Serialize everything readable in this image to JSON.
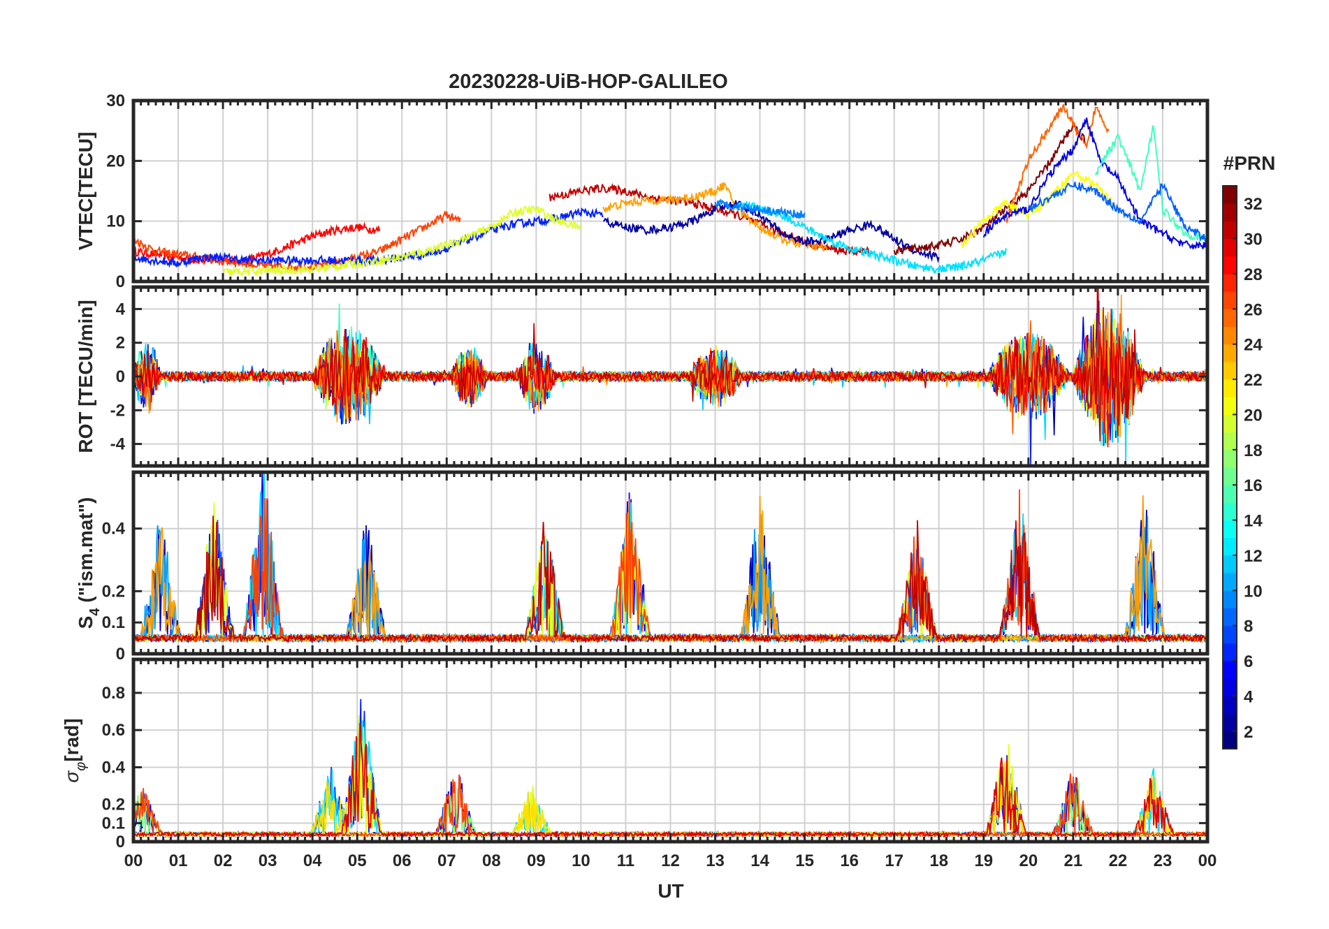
{
  "chart_data": [
    {
      "type": "line",
      "title": "20230228-UiB-HOP-GALILEO",
      "ylabel": "VTEC[TECU]",
      "ylim": [
        0,
        30
      ],
      "yticks": [
        0,
        10,
        20,
        30
      ],
      "xlim": [
        0,
        24
      ],
      "series": [
        {
          "prn": 29,
          "x": [
            0,
            0.5,
            1,
            1.5,
            2,
            2.5,
            3,
            3.5,
            4,
            4.5,
            5,
            5.5
          ],
          "values": [
            5,
            4.5,
            4,
            3.5,
            3.5,
            3.5,
            4.5,
            6,
            7.5,
            8.5,
            9,
            8.5
          ]
        },
        {
          "prn": 27,
          "x": [
            0,
            0.5,
            1,
            1.5,
            2,
            2.5,
            3,
            3.5,
            4,
            4.5,
            5,
            5.5,
            6,
            6.5,
            7,
            7.3
          ],
          "values": [
            7,
            5,
            4.5,
            4,
            3.5,
            3,
            2.5,
            2.5,
            2.5,
            3,
            4,
            5,
            7,
            9,
            11,
            10
          ]
        },
        {
          "prn": 6,
          "x": [
            0,
            0.5,
            1,
            1.5,
            2,
            2.5,
            3,
            3.5,
            4,
            4.5,
            5,
            5.5,
            6,
            6.5,
            7,
            7.5,
            8,
            8.5,
            9,
            9.5,
            10,
            10.5
          ],
          "values": [
            4,
            3.5,
            3,
            4,
            4,
            3.5,
            3.5,
            3.5,
            3.5,
            3.5,
            3.5,
            3.5,
            4,
            4.5,
            5.5,
            7,
            8.5,
            9.5,
            10,
            10.5,
            11.5,
            11
          ]
        },
        {
          "prn": 20,
          "x": [
            2,
            3,
            4,
            5,
            6,
            7,
            8,
            8.5,
            9,
            9.5,
            10
          ],
          "values": [
            1.5,
            1.8,
            2,
            3,
            4,
            6,
            9,
            11.5,
            12,
            10,
            9
          ]
        },
        {
          "prn": 31,
          "x": [
            9.3,
            9.7,
            10,
            10.5,
            11,
            11.5,
            12,
            12.5,
            13,
            13.5,
            14,
            14.5,
            15,
            15.5,
            16,
            16.5
          ],
          "values": [
            14,
            14.5,
            15,
            15.5,
            15,
            14,
            13.5,
            13,
            12,
            11,
            9.5,
            8,
            6.5,
            5.5,
            5,
            5
          ]
        },
        {
          "prn": 24,
          "x": [
            10.5,
            11,
            11.5,
            12,
            12.5,
            13,
            13.2,
            13.5,
            14,
            14.5,
            15,
            15.5
          ],
          "values": [
            12,
            13,
            13.5,
            13.5,
            14,
            15,
            16,
            12,
            9,
            7,
            6,
            5.5
          ]
        },
        {
          "prn": 2,
          "x": [
            10.5,
            11,
            11.5,
            12,
            12.5,
            13,
            13.5,
            14,
            14.5,
            15,
            15.5,
            16,
            16.5,
            17,
            17.5,
            18
          ],
          "values": [
            10,
            9,
            8.5,
            9,
            10,
            12,
            13,
            11,
            8,
            6.5,
            7,
            8.5,
            9.5,
            7,
            5,
            4
          ]
        },
        {
          "prn": 12,
          "x": [
            13.5,
            14,
            14.5,
            15,
            15.5,
            16,
            16.5,
            17,
            17.5,
            18,
            18.5,
            19,
            19.5
          ],
          "values": [
            13,
            12,
            11,
            9,
            7,
            5.5,
            4.5,
            3.5,
            2.5,
            2,
            2.5,
            3.5,
            5
          ]
        },
        {
          "prn": 9,
          "x": [
            13,
            13.5,
            14,
            14.5,
            15
          ],
          "values": [
            13,
            12.5,
            12,
            11.5,
            11
          ]
        },
        {
          "prn": 33,
          "x": [
            17,
            17.5,
            18,
            18.5,
            19,
            19.5,
            20,
            20.5,
            21,
            21.3
          ],
          "values": [
            5,
            5.5,
            6,
            7,
            9,
            12,
            15,
            20,
            26,
            23
          ]
        },
        {
          "prn": 26,
          "x": [
            19.5,
            20,
            20.5,
            20.8,
            21,
            21.3,
            21.5,
            21.8
          ],
          "values": [
            10,
            20,
            26,
            29,
            26,
            22,
            29,
            25
          ]
        },
        {
          "prn": 21,
          "x": [
            18.5,
            19,
            19.5,
            20,
            20.5,
            21,
            21.5,
            22
          ],
          "values": [
            6,
            10,
            13,
            11,
            14,
            18,
            16,
            12
          ]
        },
        {
          "prn": 4,
          "x": [
            19,
            19.5,
            20,
            20.5,
            21,
            21.3,
            21.6,
            22,
            22.5,
            23,
            23.5,
            24
          ],
          "values": [
            8,
            11,
            12,
            18,
            22,
            27,
            20,
            17,
            10,
            8,
            6,
            6
          ]
        },
        {
          "prn": 15,
          "x": [
            21.5,
            22,
            22.5,
            22.8,
            23,
            23.5,
            24
          ],
          "values": [
            18,
            24,
            15,
            26,
            12,
            8,
            7
          ]
        },
        {
          "prn": 8,
          "x": [
            20,
            20.5,
            21,
            21.5,
            22,
            22.5,
            23,
            23.5,
            24
          ],
          "values": [
            12,
            14,
            16,
            15,
            12,
            10,
            16,
            9,
            7
          ]
        }
      ]
    },
    {
      "type": "line",
      "ylabel": "ROT [TECU/min]",
      "ylim": [
        -5.3,
        5.3
      ],
      "yticks": [
        -4,
        -2,
        0,
        2,
        4
      ],
      "xlim": [
        0,
        24
      ],
      "note_free_bursts": [
        {
          "center": 0.3,
          "width": 0.6,
          "amp": 2.5
        },
        {
          "center": 4.8,
          "width": 1.6,
          "amp": 3.5
        },
        {
          "center": 7.5,
          "width": 0.8,
          "amp": 2.0
        },
        {
          "center": 9.0,
          "width": 0.8,
          "amp": 2.5
        },
        {
          "center": 13.0,
          "width": 1.2,
          "amp": 2.0
        },
        {
          "center": 20.0,
          "width": 1.8,
          "amp": 3.0
        },
        {
          "center": 21.8,
          "width": 1.6,
          "amp": 5.0
        }
      ]
    },
    {
      "type": "line",
      "ylabel": "S4 (\"ism.mat\")",
      "ylim": [
        0,
        0.58
      ],
      "yticks": [
        0,
        0.1,
        0.2,
        0.4
      ],
      "xlim": [
        0,
        24
      ],
      "peaks": [
        {
          "x": 0.6,
          "value": 0.42
        },
        {
          "x": 1.8,
          "value": 0.46
        },
        {
          "x": 2.9,
          "value": 0.58
        },
        {
          "x": 5.2,
          "value": 0.4
        },
        {
          "x": 9.2,
          "value": 0.42
        },
        {
          "x": 11.1,
          "value": 0.5
        },
        {
          "x": 14.0,
          "value": 0.48
        },
        {
          "x": 17.5,
          "value": 0.4
        },
        {
          "x": 19.8,
          "value": 0.48
        },
        {
          "x": 22.6,
          "value": 0.5
        }
      ]
    },
    {
      "type": "line",
      "ylabel": "σφ[rad]",
      "ylim": [
        0,
        0.98
      ],
      "yticks": [
        0,
        0.1,
        0.2,
        0.4,
        0.6,
        0.8
      ],
      "xlim": [
        0,
        24
      ],
      "peaks": [
        {
          "x": 0.2,
          "value": 0.28
        },
        {
          "x": 4.4,
          "value": 0.38
        },
        {
          "x": 5.1,
          "value": 0.78
        },
        {
          "x": 7.2,
          "value": 0.4
        },
        {
          "x": 8.9,
          "value": 0.28
        },
        {
          "x": 19.5,
          "value": 0.58
        },
        {
          "x": 21.0,
          "value": 0.38
        },
        {
          "x": 22.8,
          "value": 0.36
        }
      ]
    }
  ],
  "x_axis": {
    "label": "UT",
    "ticks": [
      "00",
      "01",
      "02",
      "03",
      "04",
      "05",
      "06",
      "07",
      "08",
      "09",
      "10",
      "11",
      "12",
      "13",
      "14",
      "15",
      "16",
      "17",
      "18",
      "19",
      "20",
      "21",
      "22",
      "23",
      "00"
    ]
  },
  "colorbar": {
    "label": "#PRN",
    "range": [
      1,
      33
    ],
    "ticks": [
      "2",
      "4",
      "6",
      "8",
      "10",
      "12",
      "14",
      "16",
      "18",
      "20",
      "22",
      "24",
      "26",
      "28",
      "30",
      "32"
    ],
    "colormap": "jet"
  },
  "labels": {
    "title": "20230228-UiB-HOP-GALILEO",
    "vtec": "VTEC[TECU]",
    "rot": "ROT [TECU/min]",
    "s4_main": "S",
    "s4_sub": "4",
    "s4_rest": " (\"ism.mat\")",
    "sig_main": "σ",
    "sig_sub": "φ",
    "sig_rest": "[rad]",
    "xlabel": "UT",
    "cb": "#PRN"
  }
}
